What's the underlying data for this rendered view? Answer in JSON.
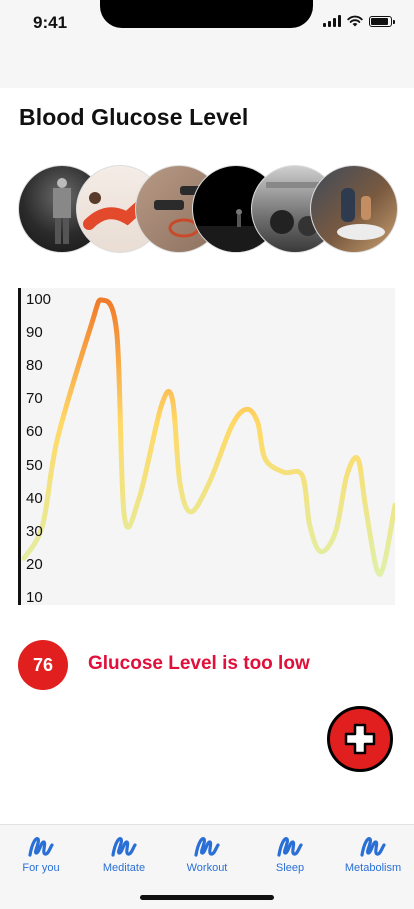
{
  "status": {
    "time": "9:41"
  },
  "page": {
    "title": "Blood Glucose Level"
  },
  "carousel": [
    {
      "name": "athlete-photo"
    },
    {
      "name": "stretching-photo"
    },
    {
      "name": "dumbbells-photo"
    },
    {
      "name": "gym-runner-photo"
    },
    {
      "name": "weights-photo"
    },
    {
      "name": "shoe-lacing-photo"
    }
  ],
  "chart_data": {
    "type": "line",
    "title": "",
    "xlabel": "",
    "ylabel": "",
    "ylim": [
      10,
      100
    ],
    "yticks": [
      "100",
      "90",
      "80",
      "70",
      "60",
      "50",
      "40",
      "30",
      "20",
      "10"
    ],
    "series": [
      {
        "values": [
          [
            0,
            22
          ],
          [
            5,
            32
          ],
          [
            9,
            58
          ],
          [
            18,
            92
          ],
          [
            21,
            100
          ],
          [
            25,
            90
          ],
          [
            27,
            35
          ],
          [
            31,
            40
          ],
          [
            37,
            68
          ],
          [
            40,
            70
          ],
          [
            42,
            45
          ],
          [
            45,
            36
          ],
          [
            50,
            45
          ],
          [
            56,
            62
          ],
          [
            60,
            67
          ],
          [
            63,
            63
          ],
          [
            65,
            52
          ],
          [
            70,
            48
          ],
          [
            75,
            47
          ],
          [
            77,
            32
          ],
          [
            80,
            24
          ],
          [
            84,
            30
          ],
          [
            87,
            47
          ],
          [
            90,
            52
          ],
          [
            92,
            38
          ],
          [
            95,
            19
          ],
          [
            97,
            20
          ],
          [
            100,
            38
          ]
        ]
      }
    ],
    "gradient": [
      "#e0f0a8",
      "#ffd966",
      "#f07b2a"
    ],
    "grid": false
  },
  "status_card": {
    "value": "76",
    "message": "Glucose Level is too low",
    "accent": "#e21f1f",
    "text_color": "#e0103a"
  },
  "fab": {
    "icon": "plus-icon"
  },
  "tabs": [
    {
      "label": "For you",
      "icon": "scribble-icon"
    },
    {
      "label": "Meditate",
      "icon": "scribble-icon"
    },
    {
      "label": "Workout",
      "icon": "scribble-icon"
    },
    {
      "label": "Sleep",
      "icon": "scribble-icon"
    },
    {
      "label": "Metabolism",
      "icon": "scribble-icon"
    }
  ]
}
